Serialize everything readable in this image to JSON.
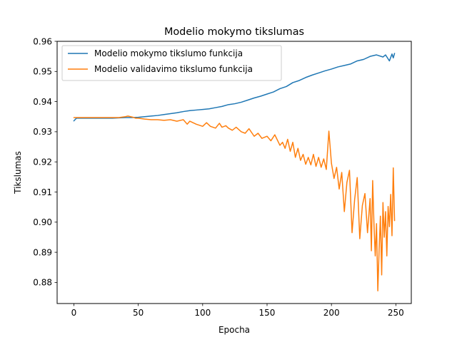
{
  "chart_data": {
    "type": "line",
    "title": "Modelio mokymo tikslumas",
    "xlabel": "Epocha",
    "ylabel": "Tikslumas",
    "xlim": [
      -13,
      262
    ],
    "ylim": [
      0.873,
      0.96
    ],
    "xticks": [
      0,
      50,
      100,
      150,
      200,
      250
    ],
    "yticks": [
      0.88,
      0.89,
      0.9,
      0.91,
      0.92,
      0.93,
      0.94,
      0.95,
      0.96
    ],
    "ytick_labels": [
      "0.88",
      "0.89",
      "0.90",
      "0.91",
      "0.92",
      "0.93",
      "0.94",
      "0.95",
      "0.96"
    ],
    "grid": false,
    "legend_position": "upper-left",
    "series": [
      {
        "name": "Modelio mokymo tikslumo funkcija",
        "color": "#1f77b4",
        "x": [
          0,
          2,
          5,
          10,
          20,
          30,
          40,
          45,
          50,
          55,
          60,
          65,
          70,
          75,
          80,
          85,
          90,
          95,
          100,
          105,
          110,
          115,
          120,
          125,
          130,
          135,
          140,
          145,
          150,
          155,
          160,
          165,
          170,
          175,
          180,
          185,
          190,
          195,
          200,
          205,
          210,
          215,
          220,
          225,
          230,
          235,
          240,
          242,
          245,
          247,
          248,
          249
        ],
        "y": [
          0.9336,
          0.9345,
          0.9345,
          0.9345,
          0.9345,
          0.9345,
          0.9347,
          0.9347,
          0.9348,
          0.935,
          0.9352,
          0.9354,
          0.9357,
          0.936,
          0.9363,
          0.9367,
          0.937,
          0.9372,
          0.9374,
          0.9376,
          0.938,
          0.9384,
          0.939,
          0.9393,
          0.9398,
          0.9405,
          0.9412,
          0.9418,
          0.9425,
          0.9432,
          0.9443,
          0.945,
          0.9463,
          0.947,
          0.948,
          0.9488,
          0.9495,
          0.9502,
          0.9508,
          0.9515,
          0.952,
          0.9525,
          0.9535,
          0.954,
          0.955,
          0.9555,
          0.9548,
          0.9555,
          0.9535,
          0.9558,
          0.9545,
          0.956
        ]
      },
      {
        "name": "Modelio validavimo tikslumo funkcija",
        "color": "#ff7f0e",
        "x": [
          0,
          10,
          20,
          30,
          35,
          40,
          42,
          44,
          46,
          48,
          50,
          55,
          60,
          65,
          70,
          75,
          80,
          85,
          88,
          90,
          95,
          100,
          103,
          106,
          110,
          113,
          115,
          118,
          120,
          123,
          126,
          130,
          133,
          136,
          140,
          143,
          146,
          150,
          153,
          156,
          160,
          162,
          164,
          166,
          168,
          170,
          172,
          174,
          176,
          178,
          180,
          182,
          184,
          186,
          188,
          190,
          192,
          194,
          196,
          198,
          200,
          202,
          204,
          206,
          208,
          210,
          212,
          214,
          216,
          218,
          220,
          222,
          224,
          226,
          228,
          230,
          231,
          232,
          233,
          234,
          235,
          236,
          237,
          238,
          239,
          240,
          241,
          242,
          243,
          244,
          245,
          246,
          247,
          248,
          249
        ],
        "y": [
          0.9347,
          0.9347,
          0.9347,
          0.9347,
          0.9347,
          0.935,
          0.9352,
          0.935,
          0.9348,
          0.9345,
          0.9345,
          0.9342,
          0.934,
          0.934,
          0.9338,
          0.934,
          0.9335,
          0.934,
          0.9325,
          0.9335,
          0.9325,
          0.9318,
          0.933,
          0.9318,
          0.9312,
          0.9328,
          0.9315,
          0.932,
          0.9312,
          0.9305,
          0.9315,
          0.93,
          0.9295,
          0.931,
          0.9285,
          0.9295,
          0.9278,
          0.9285,
          0.927,
          0.929,
          0.9255,
          0.9265,
          0.9245,
          0.9275,
          0.9235,
          0.9265,
          0.9215,
          0.9245,
          0.9205,
          0.9225,
          0.9192,
          0.9215,
          0.919,
          0.9225,
          0.9185,
          0.9215,
          0.9182,
          0.921,
          0.9175,
          0.9302,
          0.9195,
          0.9145,
          0.9182,
          0.911,
          0.9165,
          0.9035,
          0.9132,
          0.9172,
          0.8965,
          0.9075,
          0.9148,
          0.8945,
          0.9055,
          0.9095,
          0.8965,
          0.9078,
          0.8905,
          0.9138,
          0.8995,
          0.8888,
          0.8995,
          0.8772,
          0.8905,
          0.902,
          0.8825,
          0.9065,
          0.895,
          0.9035,
          0.8888,
          0.9052,
          0.8985,
          0.9092,
          0.8955,
          0.918,
          0.9005
        ]
      }
    ]
  }
}
